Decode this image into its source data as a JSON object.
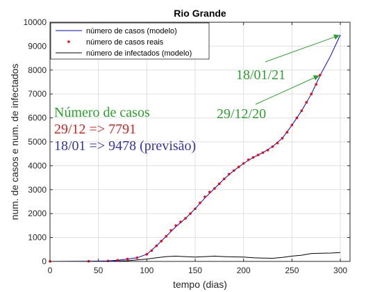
{
  "chart_data": {
    "type": "line",
    "title": "Rio Grande",
    "xlabel": "tempo (dias)",
    "ylabel": "num. de casos e num. de infectados",
    "xlim": [
      0,
      310
    ],
    "ylim": [
      0,
      10000
    ],
    "x_ticks": [
      0,
      50,
      100,
      150,
      200,
      250,
      300
    ],
    "y_ticks": [
      0,
      1000,
      2000,
      3000,
      4000,
      5000,
      6000,
      7000,
      8000,
      9000,
      10000
    ],
    "grid": true,
    "legend_position": "top-center",
    "series": [
      {
        "name": "número de casos (modelo)",
        "style": "line",
        "color": "#0000ff",
        "x": [
          0,
          40,
          60,
          70,
          80,
          90,
          100,
          110,
          120,
          130,
          140,
          150,
          160,
          170,
          180,
          190,
          200,
          210,
          220,
          230,
          240,
          250,
          260,
          270,
          280,
          290,
          300
        ],
        "y": [
          0,
          5,
          20,
          50,
          100,
          150,
          300,
          650,
          1050,
          1450,
          1800,
          2200,
          2650,
          3050,
          3450,
          3800,
          4100,
          4350,
          4550,
          4800,
          5150,
          5700,
          6300,
          7000,
          7850,
          8600,
          9478
        ]
      },
      {
        "name": "número de casos reais",
        "style": "markers",
        "color": "#ff0000",
        "x": [
          0,
          40,
          60,
          70,
          80,
          90,
          100,
          105,
          110,
          115,
          120,
          125,
          130,
          135,
          140,
          145,
          150,
          155,
          160,
          165,
          170,
          175,
          180,
          185,
          190,
          195,
          200,
          205,
          210,
          215,
          220,
          225,
          230,
          235,
          240,
          245,
          250,
          255,
          260,
          265,
          270,
          275,
          279
        ],
        "y": [
          0,
          5,
          20,
          50,
          100,
          150,
          300,
          450,
          650,
          850,
          1050,
          1300,
          1500,
          1650,
          1800,
          2000,
          2200,
          2450,
          2700,
          2900,
          3050,
          3250,
          3450,
          3650,
          3800,
          3950,
          4100,
          4250,
          4350,
          4450,
          4550,
          4650,
          4800,
          4950,
          5150,
          5400,
          5700,
          6000,
          6300,
          6650,
          7000,
          7400,
          7791
        ]
      },
      {
        "name": "número de infectados (modelo)",
        "style": "line",
        "color": "#000000",
        "x": [
          0,
          60,
          80,
          100,
          110,
          120,
          130,
          140,
          150,
          160,
          170,
          180,
          190,
          200,
          210,
          220,
          230,
          240,
          250,
          260,
          270,
          280,
          290,
          300
        ],
        "y": [
          0,
          5,
          30,
          100,
          150,
          200,
          220,
          200,
          180,
          200,
          220,
          200,
          190,
          180,
          150,
          140,
          130,
          170,
          220,
          260,
          330,
          340,
          350,
          370
        ]
      }
    ],
    "annotations": [
      {
        "text": "Número de casos",
        "color": "#2ca02c"
      },
      {
        "text": "29/12 => 7791",
        "color": "#cc2222"
      },
      {
        "text": "18/01 => 9478 (previsão)",
        "color": "#3333aa"
      },
      {
        "text": "18/01/21",
        "color": "#2ca02c",
        "arrow_to": [
          300,
          9478
        ]
      },
      {
        "text": "29/12/20",
        "color": "#2ca02c",
        "arrow_to": [
          279,
          7791
        ]
      }
    ]
  }
}
